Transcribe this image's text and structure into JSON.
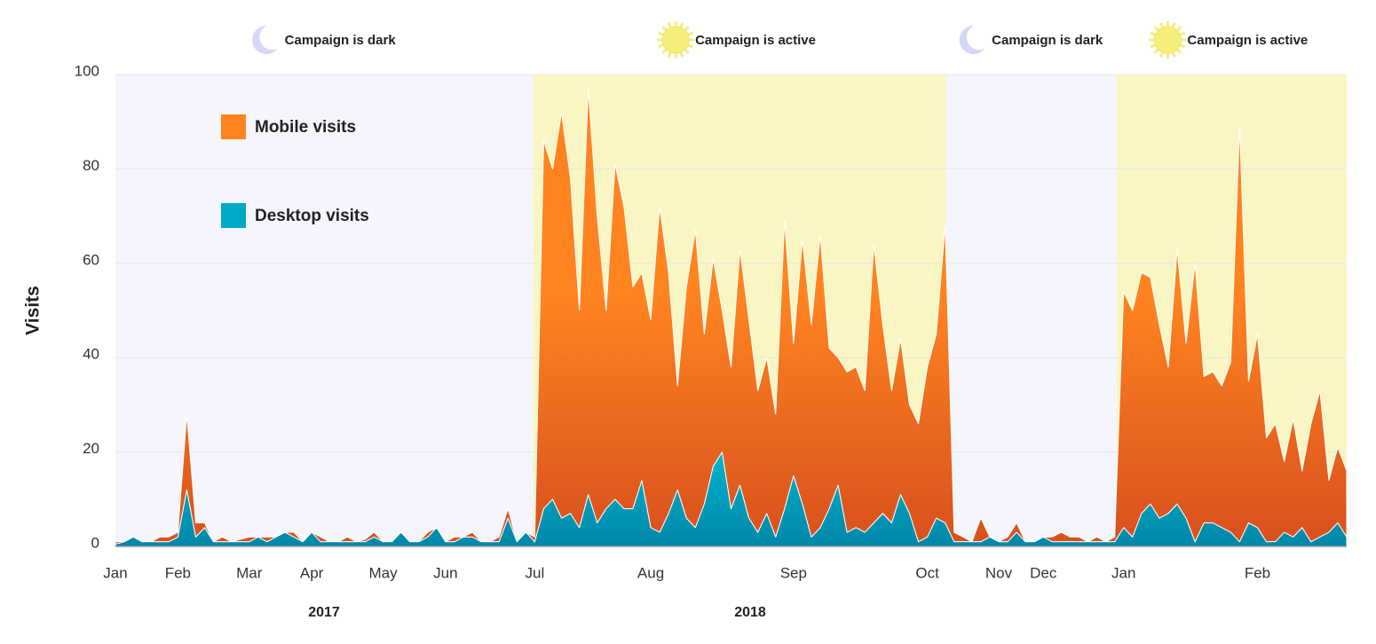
{
  "chart_data": {
    "type": "stacked-area",
    "y_axis_label": "Visits",
    "ylim": [
      0,
      100
    ],
    "yticks": [
      0,
      20,
      40,
      60,
      80,
      100
    ],
    "grid": true,
    "legend": "upper left",
    "group_labels": [
      "2017",
      "2018"
    ],
    "bands": [
      {
        "label": "Campaign is dark",
        "from": 0,
        "to": 46.8,
        "color": "#f5f5fd",
        "icon": "moon"
      },
      {
        "label": "Campaign is active",
        "from": 46.8,
        "to": 93.1,
        "color": "#faf6c3",
        "icon": "sun"
      },
      {
        "label": "Campaign is dark",
        "from": 93.1,
        "to": 112.2,
        "color": "#f5f5fd",
        "icon": "moon"
      },
      {
        "label": "Campaign is active",
        "from": 112.2,
        "to": 138,
        "color": "#faf6c3",
        "icon": "sun"
      }
    ],
    "categories": [
      "Jan",
      null,
      null,
      null,
      null,
      null,
      null,
      "Feb",
      null,
      null,
      null,
      null,
      null,
      null,
      null,
      "Mar",
      null,
      null,
      null,
      null,
      null,
      null,
      "Apr",
      null,
      null,
      null,
      null,
      null,
      null,
      null,
      "May",
      null,
      null,
      null,
      null,
      null,
      null,
      "Jun",
      null,
      null,
      null,
      null,
      null,
      null,
      null,
      null,
      null,
      "Jul",
      null,
      null,
      null,
      null,
      null,
      null,
      null,
      null,
      null,
      null,
      null,
      null,
      "Aug",
      null,
      null,
      null,
      null,
      null,
      null,
      null,
      null,
      null,
      null,
      null,
      null,
      null,
      null,
      null,
      "Sep",
      null,
      null,
      null,
      null,
      null,
      null,
      null,
      null,
      null,
      null,
      null,
      null,
      null,
      null,
      "Oct",
      null,
      null,
      null,
      null,
      null,
      null,
      null,
      "Nov",
      null,
      null,
      null,
      null,
      "Dec",
      null,
      null,
      null,
      null,
      null,
      null,
      null,
      null,
      "Jan",
      null,
      null,
      null,
      null,
      null,
      null,
      null,
      null,
      null,
      null,
      null,
      null,
      null,
      null,
      "Feb",
      null,
      null,
      null,
      null,
      null,
      null,
      null,
      null,
      null,
      null
    ],
    "series": [
      {
        "name": "Mobile visits",
        "color": "#ff8420",
        "values": [
          0.5,
          0,
          0,
          0,
          0,
          1,
          1,
          1,
          16,
          3,
          1,
          0,
          1,
          0,
          0.5,
          1,
          0,
          1,
          0,
          0,
          1,
          0,
          0,
          1,
          0,
          0,
          1,
          0,
          0.5,
          1,
          0,
          0,
          0,
          0,
          0,
          1,
          0,
          0,
          1,
          0,
          1,
          0,
          0,
          1,
          2,
          0,
          0,
          1,
          78,
          70,
          86,
          71,
          46,
          86,
          65,
          42,
          71,
          64,
          47,
          44,
          44,
          69,
          51,
          22,
          49,
          63,
          36,
          44,
          30,
          30,
          50,
          42,
          30,
          33,
          26,
          61,
          28,
          56,
          45,
          62,
          34,
          27,
          34,
          34,
          30,
          59,
          40,
          28,
          33,
          23,
          25,
          36,
          39,
          63,
          2,
          1,
          0,
          5,
          0,
          0,
          1,
          2,
          0,
          0,
          0,
          1,
          2,
          1,
          1,
          0,
          1,
          0,
          1,
          50,
          48,
          51,
          48,
          41,
          31,
          54,
          37,
          59,
          31,
          32,
          30,
          36,
          88,
          30,
          41,
          22,
          25,
          15,
          25,
          12,
          25,
          31,
          11,
          16,
          14
        ]
      },
      {
        "name": "Desktop visits",
        "color": "#00a9c4",
        "values": [
          0.5,
          1,
          2,
          1,
          1,
          1,
          1,
          2,
          12,
          2,
          4,
          1,
          1,
          1,
          1,
          1,
          2,
          1,
          2,
          3,
          2,
          1,
          3,
          1,
          1,
          1,
          1,
          1,
          1,
          2,
          1,
          1,
          3,
          1,
          1,
          2,
          4,
          1,
          1,
          2,
          2,
          1,
          1,
          1,
          6,
          1,
          3,
          1,
          8,
          10,
          6,
          7,
          4,
          11,
          5,
          8,
          10,
          8,
          8,
          14,
          4,
          3,
          7,
          12,
          6,
          4,
          9,
          17,
          20,
          8,
          13,
          6,
          3,
          7,
          2,
          8,
          15,
          9,
          2,
          4,
          8,
          13,
          3,
          4,
          3,
          5,
          7,
          5,
          11,
          7,
          1,
          2,
          6,
          5,
          1,
          1,
          1,
          1,
          2,
          1,
          1,
          3,
          1,
          1,
          2,
          1,
          1,
          1,
          1,
          1,
          1,
          1,
          1,
          4,
          2,
          7,
          9,
          6,
          7,
          9,
          6,
          1,
          5,
          5,
          4,
          3,
          1,
          5,
          4,
          1,
          1,
          3,
          2,
          4,
          1,
          2,
          3,
          5,
          2
        ]
      }
    ]
  }
}
